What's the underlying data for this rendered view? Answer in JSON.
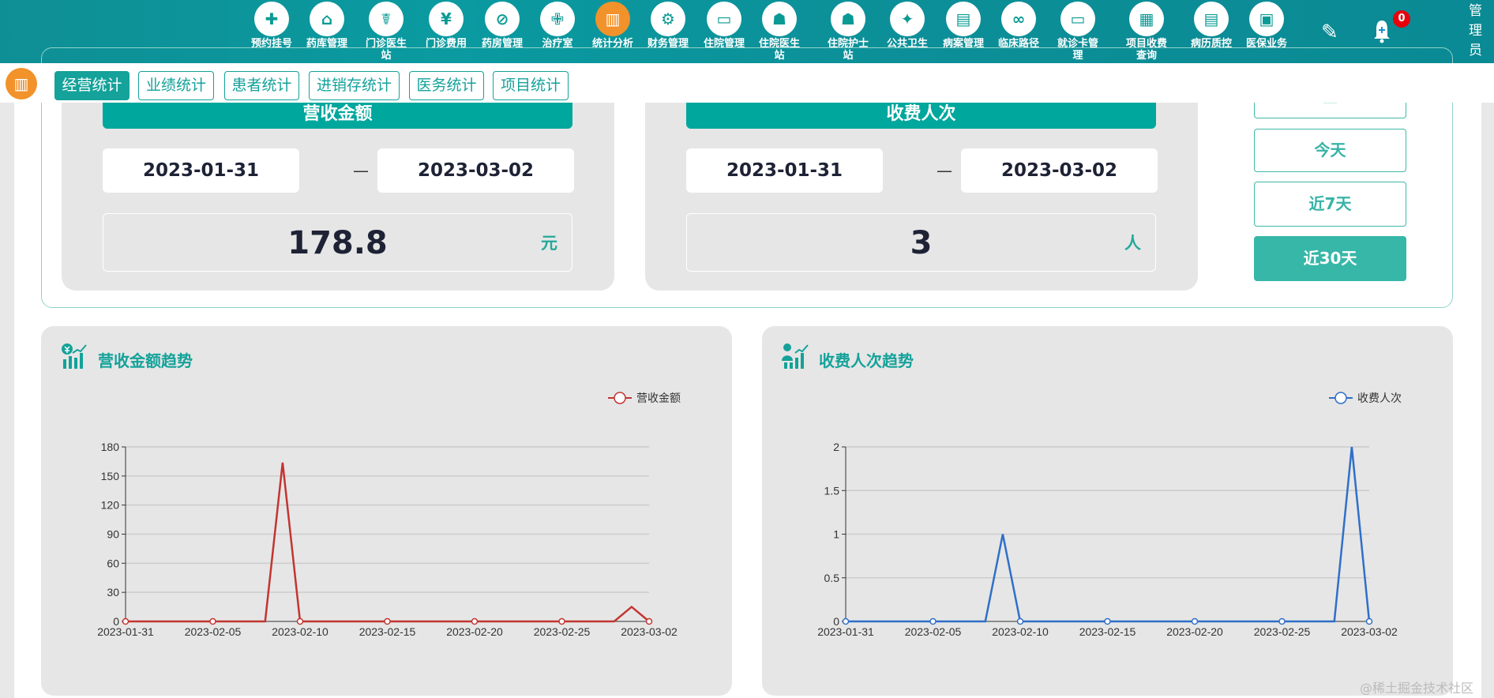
{
  "header": {
    "nav_items": [
      {
        "label": "预约挂号",
        "icon": "calendar-plus-icon",
        "glyph": "✚"
      },
      {
        "label": "药库管理",
        "icon": "warehouse-icon",
        "glyph": "⌂"
      },
      {
        "label": "门诊医生站",
        "icon": "doctor-icon",
        "glyph": "☤"
      },
      {
        "label": "门诊费用",
        "icon": "yen-icon",
        "glyph": "¥"
      },
      {
        "label": "药房管理",
        "icon": "pill-icon",
        "glyph": "⊘"
      },
      {
        "label": "治疗室",
        "icon": "nurse-icon",
        "glyph": "✙"
      },
      {
        "label": "统计分析",
        "icon": "bar-chart-icon",
        "glyph": "▥"
      },
      {
        "label": "财务管理",
        "icon": "finance-gear-icon",
        "glyph": "⚙"
      },
      {
        "label": "住院管理",
        "icon": "hospital-bed-icon",
        "glyph": "▭"
      },
      {
        "label": "住院医生站",
        "icon": "doctor-desk-icon",
        "glyph": "☗"
      },
      {
        "label": "住院护士站",
        "icon": "nurse-desk-icon",
        "glyph": "☗"
      },
      {
        "label": "公共卫生",
        "icon": "public-health-icon",
        "glyph": "✦"
      },
      {
        "label": "病案管理",
        "icon": "medical-record-icon",
        "glyph": "▤"
      },
      {
        "label": "临床路径",
        "icon": "path-icon",
        "glyph": "∞"
      },
      {
        "label": "就诊卡管理",
        "icon": "card-icon",
        "glyph": "▭"
      },
      {
        "label": "项目收费查询",
        "icon": "fee-query-icon",
        "glyph": "▦"
      },
      {
        "label": "病历质控",
        "icon": "record-quality-icon",
        "glyph": "▤"
      },
      {
        "label": "医保业务",
        "icon": "insurance-card-icon",
        "glyph": "▣"
      }
    ],
    "active_index": 6,
    "notification_count": "0",
    "user": "管理员"
  },
  "tabs": [
    {
      "label": "经营统计",
      "active": true
    },
    {
      "label": "业绩统计"
    },
    {
      "label": "患者统计"
    },
    {
      "label": "进销存统计"
    },
    {
      "label": "医务统计"
    },
    {
      "label": "项目统计"
    }
  ],
  "summary": {
    "revenue": {
      "title": "营收金额",
      "start": "2023-01-31",
      "end": "2023-03-02",
      "separator": "—",
      "value": "178.8",
      "unit": "元"
    },
    "visits": {
      "title": "收费人次",
      "start": "2023-01-31",
      "end": "2023-03-02",
      "separator": "—",
      "value": "3",
      "unit": "人"
    }
  },
  "range_buttons": [
    {
      "label": "",
      "icon": "calendar-icon"
    },
    {
      "label": "今天"
    },
    {
      "label": "近7天"
    },
    {
      "label": "近30天",
      "active": true
    }
  ],
  "colors": {
    "primary": "#00a79d",
    "accent": "#f2922a",
    "revenue_line": "#c23531",
    "visits_line": "#2f6fc9"
  },
  "chart_data": [
    {
      "type": "line",
      "title": "营收金额趋势",
      "legend": "营收金额",
      "legend_position": "top-right",
      "x_start": "2023-01-31",
      "x_end": "2023-03-02",
      "xticks": [
        "2023-01-31",
        "2023-02-05",
        "2023-02-10",
        "2023-02-15",
        "2023-02-20",
        "2023-02-25",
        "2023-03-02"
      ],
      "yticks": [
        "0",
        "30",
        "60",
        "90",
        "120",
        "150",
        "180"
      ],
      "ylim": [
        0,
        180
      ],
      "grid": true,
      "series": [
        {
          "name": "营收金额",
          "points": [
            [
              "2023-02-09",
              163.8
            ],
            [
              "2023-03-01",
              15
            ]
          ],
          "default": 0
        }
      ]
    },
    {
      "type": "line",
      "title": "收费人次趋势",
      "legend": "收费人次",
      "legend_position": "top-right",
      "x_start": "2023-01-31",
      "x_end": "2023-03-02",
      "xticks": [
        "2023-01-31",
        "2023-02-05",
        "2023-02-10",
        "2023-02-15",
        "2023-02-20",
        "2023-02-25",
        "2023-03-02"
      ],
      "yticks": [
        "0",
        "0.5",
        "1",
        "1.5",
        "2"
      ],
      "ylim": [
        0,
        2
      ],
      "grid": true,
      "series": [
        {
          "name": "收费人次",
          "points": [
            [
              "2023-02-09",
              1
            ],
            [
              "2023-03-01",
              2
            ]
          ],
          "default": 0
        }
      ]
    }
  ],
  "watermark": "@稀土掘金技术社区"
}
